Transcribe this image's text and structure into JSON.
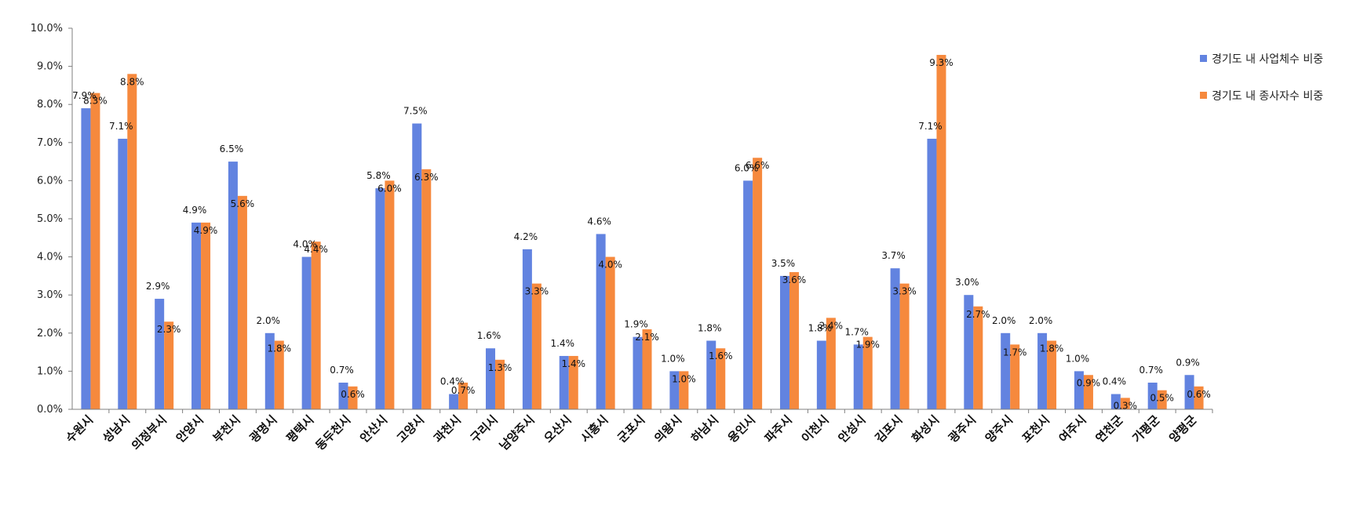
{
  "chart_data": {
    "type": "bar",
    "ylim": [
      0,
      10
    ],
    "yticks": [
      "0.0%",
      "1.0%",
      "2.0%",
      "3.0%",
      "4.0%",
      "5.0%",
      "6.0%",
      "7.0%",
      "8.0%",
      "9.0%",
      "10.0%"
    ],
    "categories": [
      "수원시",
      "성남시",
      "의정부시",
      "안양시",
      "부천시",
      "광명시",
      "평택시",
      "동두천시",
      "안산시",
      "고양시",
      "과천시",
      "구리시",
      "남양주시",
      "오산시",
      "시흥시",
      "군포시",
      "의왕시",
      "하남시",
      "용인시",
      "파주시",
      "이천시",
      "안성시",
      "김포시",
      "화성시",
      "광주시",
      "양주시",
      "포천시",
      "여주시",
      "연천군",
      "가평군",
      "양평군"
    ],
    "series": [
      {
        "name": "경기도 내 사업체수 비중",
        "color": "#6283e0",
        "values": [
          7.9,
          7.1,
          2.9,
          4.9,
          6.5,
          2.0,
          4.0,
          0.7,
          5.8,
          7.5,
          0.4,
          1.6,
          4.2,
          1.4,
          4.6,
          1.9,
          1.0,
          1.8,
          6.0,
          3.5,
          1.8,
          1.7,
          3.7,
          7.1,
          3.0,
          2.0,
          2.0,
          1.0,
          0.4,
          0.7,
          0.9
        ],
        "labels": [
          "7.9%",
          "7.1%",
          "2.9%",
          "4.9%",
          "6.5%",
          "2.0%",
          "4.0%",
          "0.7%",
          "5.8%",
          "7.5%",
          "0.4%",
          "1.6%",
          "4.2%",
          "1.4%",
          "4.6%",
          "1.9%",
          "1.0%",
          "1.8%",
          "6.0%",
          "3.5%",
          "1.8%",
          "1.7%",
          "3.7%",
          "7.1%",
          "3.0%",
          "2.0%",
          "2.0%",
          "1.0%",
          "0.4%",
          "0.7%",
          "0.9%"
        ]
      },
      {
        "name": "경기도 내 종사자수 비중",
        "color": "#f6893d",
        "values": [
          8.3,
          8.8,
          2.3,
          4.9,
          5.6,
          1.8,
          4.4,
          0.6,
          6.0,
          6.3,
          0.7,
          1.3,
          3.3,
          1.4,
          4.0,
          2.1,
          1.0,
          1.6,
          6.6,
          3.6,
          2.4,
          1.9,
          3.3,
          9.3,
          2.7,
          1.7,
          1.8,
          0.9,
          0.3,
          0.5,
          0.6
        ],
        "labels": [
          "8.3%",
          "8.8%",
          "2.3%",
          "4.9%",
          "5.6%",
          "1.8%",
          "4.4%",
          "0.6%",
          "6.0%",
          "6.3%",
          "0.7%",
          "1.3%",
          "3.3%",
          "1.4%",
          "4.0%",
          "2.1%",
          "1.0%",
          "1.6%",
          "6.6%",
          "3.6%",
          "2.4%",
          "1.9%",
          "3.3%",
          "9.3%",
          "2.7%",
          "1.7%",
          "1.8%",
          "0.9%",
          "0.3%",
          "0.5%",
          "0.6%"
        ]
      }
    ],
    "legend_position": "top-right",
    "grid": false
  }
}
